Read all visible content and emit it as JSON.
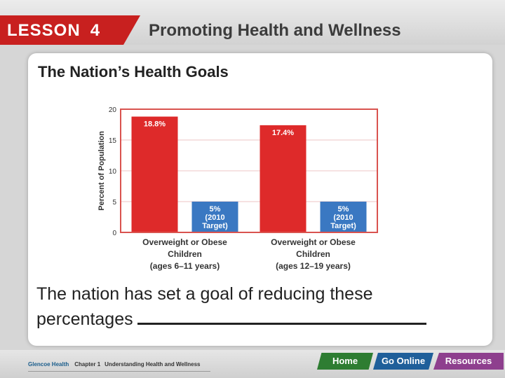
{
  "header": {
    "lesson_label": "LESSON",
    "lesson_number": "4",
    "title": "Promoting Health and Wellness"
  },
  "slide": {
    "title": "The Nation’s Health Goals",
    "body": "The nation has set a goal of reducing these percentages"
  },
  "chart_data": {
    "type": "bar",
    "title": "",
    "xlabel": "",
    "ylabel": "Percent of Population",
    "ylim": [
      0,
      20
    ],
    "yticks": [
      0,
      5,
      10,
      15,
      20
    ],
    "grid": true,
    "groups": [
      {
        "label_lines": [
          "Overweight or Obese",
          "Children",
          "(ages 6–11 years)"
        ],
        "bars": [
          {
            "value": 18.8,
            "label_lines": [
              "18.8%"
            ],
            "color": "#de2a2a"
          },
          {
            "value": 5,
            "label_lines": [
              "5%",
              "(2010",
              "Target)"
            ],
            "color": "#3a78c2"
          }
        ]
      },
      {
        "label_lines": [
          "Overweight or Obese",
          "Children",
          "(ages 12–19 years)"
        ],
        "bars": [
          {
            "value": 17.4,
            "label_lines": [
              "17.4%"
            ],
            "color": "#de2a2a"
          },
          {
            "value": 5,
            "label_lines": [
              "5%",
              "(2010",
              "Target)"
            ],
            "color": "#3a78c2"
          }
        ]
      }
    ],
    "frame_color": "#d9534f"
  },
  "footer": {
    "publisher": "Glencoe Health",
    "chapter": "Chapter 1",
    "chapter_title": "Understanding Health and Wellness",
    "nav": {
      "home": "Home",
      "online": "Go Online",
      "resources": "Resources"
    }
  }
}
